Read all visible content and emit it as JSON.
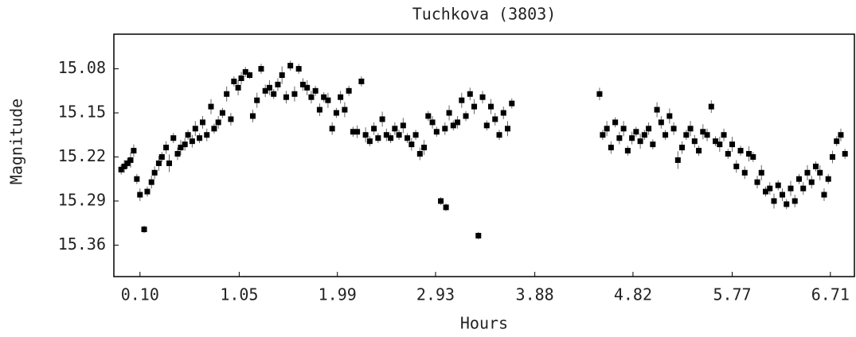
{
  "chart_data": {
    "type": "scatter",
    "title": "Tuchkova (3803)",
    "x_label": "Hours",
    "y_label": "Magnitude",
    "xlim": [
      -0.15,
      6.94
    ],
    "ylim": [
      15.025,
      15.41
    ],
    "y_inverted": true,
    "grid": false,
    "xticks": [
      {
        "value": 0.1,
        "label": "0.10"
      },
      1.05,
      1.99,
      2.93,
      3.88,
      4.82,
      5.77,
      6.71
    ],
    "yticks": [
      15.08,
      15.15,
      15.22,
      15.29,
      15.36
    ],
    "series": [
      {
        "color": "#000000",
        "x": [
          -0.08,
          -0.05,
          -0.02,
          0.01,
          0.04,
          0.07,
          0.1,
          0.14,
          0.17,
          0.21,
          0.24,
          0.28,
          0.31,
          0.35,
          0.38,
          0.42,
          0.46,
          0.49,
          0.53,
          0.56,
          0.6,
          0.63,
          0.67,
          0.7,
          0.74,
          0.78,
          0.81,
          0.85,
          0.89,
          0.93,
          0.97,
          1.0,
          1.04,
          1.07,
          1.11,
          1.15,
          1.18,
          1.22,
          1.26,
          1.3,
          1.34,
          1.38,
          1.42,
          1.46,
          1.5,
          1.54,
          1.58,
          1.62,
          1.66,
          1.7,
          1.74,
          1.78,
          1.82,
          1.86,
          1.9,
          1.94,
          1.98,
          2.02,
          2.06,
          2.1,
          2.14,
          2.18,
          2.22,
          2.26,
          2.3,
          2.34,
          2.38,
          2.42,
          2.46,
          2.5,
          2.54,
          2.58,
          2.62,
          2.66,
          2.7,
          2.74,
          2.78,
          2.82,
          2.86,
          2.9,
          2.94,
          2.98,
          3.02,
          3.03,
          3.06,
          3.1,
          3.14,
          3.18,
          3.22,
          3.26,
          3.3,
          3.34,
          3.38,
          3.42,
          3.46,
          3.5,
          3.54,
          3.58,
          3.62,
          3.66,
          4.5,
          4.53,
          4.57,
          4.61,
          4.65,
          4.69,
          4.73,
          4.77,
          4.81,
          4.85,
          4.89,
          4.93,
          4.97,
          5.01,
          5.05,
          5.09,
          5.13,
          5.17,
          5.21,
          5.25,
          5.29,
          5.33,
          5.37,
          5.41,
          5.45,
          5.49,
          5.53,
          5.57,
          5.61,
          5.65,
          5.69,
          5.73,
          5.77,
          5.81,
          5.85,
          5.89,
          5.93,
          5.97,
          6.01,
          6.05,
          6.09,
          6.13,
          6.17,
          6.21,
          6.25,
          6.29,
          6.33,
          6.37,
          6.41,
          6.45,
          6.49,
          6.53,
          6.57,
          6.61,
          6.65,
          6.69,
          6.73,
          6.77,
          6.81,
          6.85
        ],
        "values": [
          15.24,
          15.235,
          15.23,
          15.225,
          15.21,
          15.255,
          15.28,
          15.335,
          15.275,
          15.26,
          15.245,
          15.23,
          15.22,
          15.205,
          15.23,
          15.19,
          15.215,
          15.205,
          15.2,
          15.185,
          15.195,
          15.175,
          15.19,
          15.165,
          15.185,
          15.14,
          15.175,
          15.165,
          15.15,
          15.12,
          15.16,
          15.1,
          15.11,
          15.095,
          15.085,
          15.09,
          15.155,
          15.13,
          15.08,
          15.115,
          15.11,
          15.12,
          15.105,
          15.09,
          15.125,
          15.075,
          15.12,
          15.08,
          15.105,
          15.11,
          15.125,
          15.115,
          15.145,
          15.125,
          15.13,
          15.175,
          15.15,
          15.125,
          15.145,
          15.115,
          15.18,
          15.18,
          15.1,
          15.185,
          15.195,
          15.175,
          15.19,
          15.16,
          15.185,
          15.19,
          15.175,
          15.185,
          15.17,
          15.19,
          15.2,
          15.185,
          15.215,
          15.205,
          15.155,
          15.165,
          15.18,
          15.29,
          15.175,
          15.3,
          15.15,
          15.17,
          15.165,
          15.13,
          15.155,
          15.12,
          15.14,
          15.345,
          15.125,
          15.17,
          15.14,
          15.16,
          15.185,
          15.15,
          15.175,
          15.135,
          15.12,
          15.185,
          15.175,
          15.205,
          15.165,
          15.19,
          15.175,
          15.21,
          15.19,
          15.18,
          15.195,
          15.185,
          15.175,
          15.2,
          15.145,
          15.165,
          15.185,
          15.155,
          15.175,
          15.225,
          15.205,
          15.185,
          15.175,
          15.195,
          15.21,
          15.18,
          15.185,
          15.14,
          15.195,
          15.2,
          15.185,
          15.215,
          15.2,
          15.235,
          15.21,
          15.245,
          15.215,
          15.22,
          15.26,
          15.245,
          15.275,
          15.27,
          15.29,
          15.265,
          15.28,
          15.295,
          15.27,
          15.29,
          15.255,
          15.27,
          15.245,
          15.26,
          15.235,
          15.245,
          15.28,
          15.255,
          15.22,
          15.195,
          15.185,
          15.215
        ],
        "errors": [
          0.008,
          0.01,
          0.008,
          0.012,
          0.01,
          0.008,
          0.01,
          0.006,
          0.008,
          0.01,
          0.01,
          0.012,
          0.008,
          0.01,
          0.014,
          0.008,
          0.01,
          0.012,
          0.01,
          0.008,
          0.01,
          0.012,
          0.008,
          0.01,
          0.01,
          0.012,
          0.008,
          0.01,
          0.008,
          0.012,
          0.01,
          0.008,
          0.012,
          0.01,
          0.008,
          0.006,
          0.01,
          0.012,
          0.008,
          0.01,
          0.012,
          0.008,
          0.01,
          0.014,
          0.01,
          0.008,
          0.012,
          0.008,
          0.01,
          0.012,
          0.01,
          0.008,
          0.01,
          0.008,
          0.012,
          0.01,
          0.008,
          0.01,
          0.012,
          0.008,
          0.008,
          0.01,
          0.008,
          0.012,
          0.008,
          0.01,
          0.008,
          0.012,
          0.01,
          0.008,
          0.01,
          0.008,
          0.012,
          0.008,
          0.01,
          0.008,
          0.01,
          0.012,
          0.008,
          0.01,
          0.008,
          0.006,
          0.01,
          0.006,
          0.012,
          0.008,
          0.01,
          0.012,
          0.008,
          0.01,
          0.012,
          0.006,
          0.01,
          0.008,
          0.012,
          0.01,
          0.008,
          0.01,
          0.012,
          0.008,
          0.01,
          0.008,
          0.012,
          0.01,
          0.008,
          0.01,
          0.012,
          0.008,
          0.01,
          0.008,
          0.012,
          0.008,
          0.01,
          0.008,
          0.012,
          0.01,
          0.008,
          0.012,
          0.01,
          0.014,
          0.01,
          0.008,
          0.012,
          0.01,
          0.008,
          0.012,
          0.01,
          0.01,
          0.008,
          0.012,
          0.01,
          0.008,
          0.012,
          0.01,
          0.008,
          0.01,
          0.012,
          0.008,
          0.01,
          0.012,
          0.008,
          0.01,
          0.012,
          0.008,
          0.01,
          0.008,
          0.012,
          0.01,
          0.008,
          0.01,
          0.012,
          0.01,
          0.008,
          0.012,
          0.01,
          0.008,
          0.01,
          0.008,
          0.01,
          0.008
        ]
      }
    ]
  }
}
